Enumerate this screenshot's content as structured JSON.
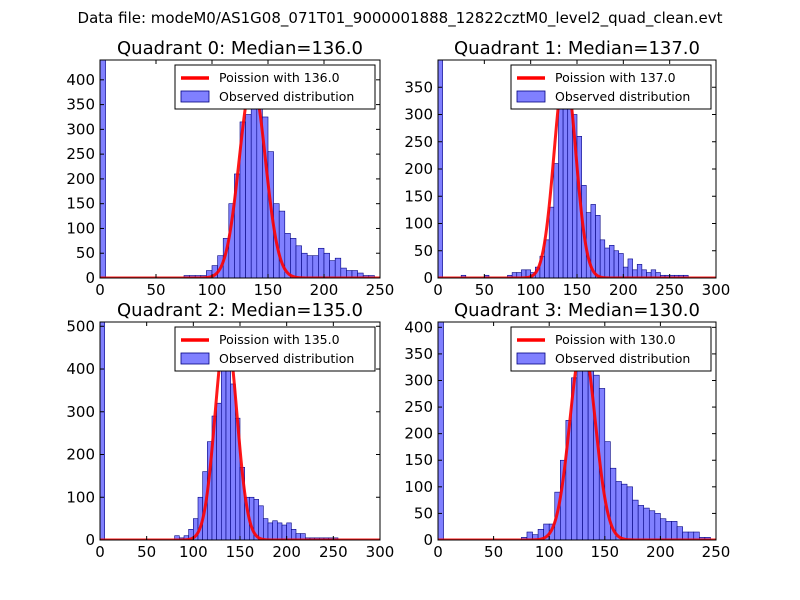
{
  "figure_title": "Data file: modeM0/AS1G08_071T01_9000001888_12822cztM0_level2_quad_clean.evt",
  "colors": {
    "bar_fill": "#8080ff",
    "bar_edge": "#000080",
    "poisson_line": "#ff0000",
    "axes": "#000000"
  },
  "chart_data": [
    {
      "type": "bar",
      "title": "Quadrant 0: Median=136.0",
      "median": 136.0,
      "legend": {
        "line_label": "Poission with 136.0",
        "bar_label": "Observed distribution",
        "placement": "top-right"
      },
      "xlim": [
        0,
        250
      ],
      "ylim": [
        0,
        440
      ],
      "xticks": [
        0,
        50,
        100,
        150,
        200,
        250
      ],
      "yticks": [
        0,
        50,
        100,
        150,
        200,
        250,
        300,
        350,
        400
      ],
      "bin_width": 5,
      "bin_starts": [
        0,
        75,
        80,
        85,
        90,
        95,
        100,
        105,
        110,
        115,
        120,
        125,
        130,
        135,
        140,
        145,
        150,
        155,
        160,
        165,
        170,
        175,
        180,
        185,
        190,
        195,
        200,
        205,
        210,
        215,
        220,
        225,
        230,
        235,
        240
      ],
      "counts": [
        440,
        5,
        5,
        5,
        5,
        15,
        25,
        45,
        80,
        150,
        210,
        315,
        330,
        370,
        355,
        325,
        255,
        150,
        135,
        90,
        80,
        65,
        50,
        45,
        45,
        60,
        50,
        35,
        40,
        20,
        15,
        15,
        10,
        5,
        5
      ],
      "poisson_peak": 396
    },
    {
      "type": "bar",
      "title": "Quadrant 1: Median=137.0",
      "median": 137.0,
      "legend": {
        "line_label": "Poission with 137.0",
        "bar_label": "Observed distribution",
        "placement": "top-right"
      },
      "xlim": [
        0,
        300
      ],
      "ylim": [
        0,
        400
      ],
      "xticks": [
        0,
        50,
        100,
        150,
        200,
        250,
        300
      ],
      "yticks": [
        0,
        50,
        100,
        150,
        200,
        250,
        300,
        350
      ],
      "bin_width": 5,
      "bin_starts": [
        0,
        25,
        50,
        75,
        80,
        85,
        90,
        95,
        100,
        105,
        110,
        115,
        120,
        125,
        130,
        135,
        140,
        145,
        150,
        155,
        160,
        165,
        170,
        175,
        180,
        185,
        190,
        195,
        200,
        205,
        210,
        215,
        220,
        225,
        230,
        235,
        240,
        245,
        250,
        255,
        260,
        265
      ],
      "counts": [
        400,
        5,
        5,
        5,
        10,
        10,
        15,
        15,
        10,
        20,
        40,
        70,
        130,
        210,
        355,
        360,
        330,
        300,
        260,
        170,
        120,
        135,
        115,
        70,
        55,
        60,
        50,
        45,
        20,
        35,
        15,
        25,
        15,
        10,
        15,
        10,
        5,
        5,
        5,
        5,
        5,
        5
      ],
      "poisson_peak": 380
    },
    {
      "type": "bar",
      "title": "Quadrant 2: Median=135.0",
      "median": 135.0,
      "legend": {
        "line_label": "Poission with 135.0",
        "bar_label": "Observed distribution",
        "placement": "top-right"
      },
      "xlim": [
        0,
        300
      ],
      "ylim": [
        0,
        510
      ],
      "xticks": [
        0,
        50,
        100,
        150,
        200,
        250,
        300
      ],
      "yticks": [
        0,
        100,
        200,
        300,
        400,
        500
      ],
      "bin_width": 5,
      "bin_starts": [
        0,
        80,
        85,
        90,
        95,
        100,
        105,
        110,
        115,
        120,
        125,
        130,
        135,
        140,
        145,
        150,
        155,
        160,
        165,
        170,
        175,
        180,
        185,
        190,
        195,
        200,
        205,
        210,
        215,
        220,
        225,
        230,
        235,
        240,
        245,
        250
      ],
      "counts": [
        510,
        10,
        5,
        10,
        25,
        50,
        100,
        160,
        230,
        290,
        320,
        400,
        410,
        365,
        285,
        170,
        100,
        100,
        95,
        80,
        50,
        40,
        45,
        40,
        35,
        40,
        25,
        15,
        15,
        5,
        5,
        5,
        5,
        5,
        5,
        5
      ],
      "poisson_peak": 490
    },
    {
      "type": "bar",
      "title": "Quadrant 3: Median=130.0",
      "median": 130.0,
      "legend": {
        "line_label": "Poission with 130.0",
        "bar_label": "Observed distribution",
        "placement": "top-right"
      },
      "xlim": [
        0,
        250
      ],
      "ylim": [
        0,
        410
      ],
      "xticks": [
        0,
        50,
        100,
        150,
        200,
        250
      ],
      "yticks": [
        0,
        50,
        100,
        150,
        200,
        250,
        300,
        350,
        400
      ],
      "bin_width": 5,
      "bin_starts": [
        0,
        75,
        80,
        85,
        90,
        95,
        100,
        105,
        110,
        115,
        120,
        125,
        130,
        135,
        140,
        145,
        150,
        155,
        160,
        165,
        170,
        175,
        180,
        185,
        190,
        195,
        200,
        205,
        210,
        215,
        220,
        225,
        230,
        235,
        240
      ],
      "counts": [
        410,
        5,
        15,
        10,
        20,
        30,
        30,
        90,
        150,
        225,
        305,
        360,
        370,
        350,
        310,
        285,
        185,
        135,
        110,
        105,
        100,
        75,
        65,
        60,
        55,
        50,
        40,
        35,
        35,
        25,
        15,
        15,
        15,
        5,
        5
      ],
      "poisson_peak": 370
    }
  ]
}
